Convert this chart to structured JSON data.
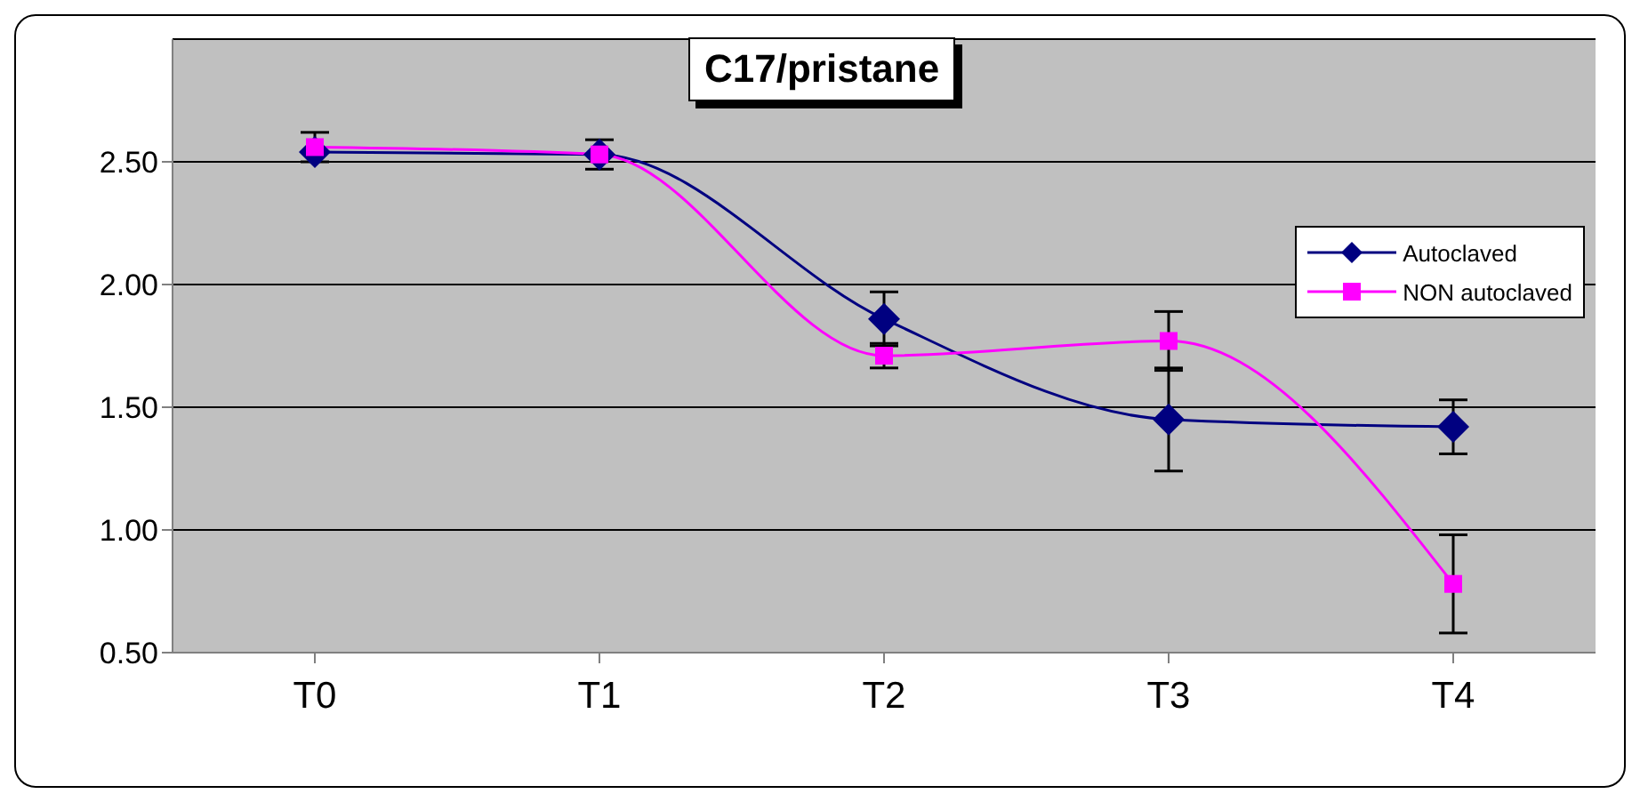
{
  "chart_data": {
    "type": "line",
    "title": "C17/pristane",
    "categories": [
      "T0",
      "T1",
      "T2",
      "T3",
      "T4"
    ],
    "series": [
      {
        "name": "Autoclaved",
        "color": "#000080",
        "marker": "diamond",
        "values": [
          2.54,
          2.53,
          1.86,
          1.45,
          1.42
        ],
        "errors": [
          null,
          null,
          0.11,
          0.21,
          0.11
        ]
      },
      {
        "name": "NON autoclaved",
        "color": "#ff00ff",
        "marker": "square",
        "values": [
          2.56,
          2.53,
          1.71,
          1.77,
          0.78
        ],
        "errors": [
          0.06,
          0.06,
          0.05,
          0.12,
          0.2
        ]
      }
    ],
    "ylim": [
      0.5,
      3.0
    ],
    "yticks": [
      {
        "value": 0.5,
        "label": "0.50"
      },
      {
        "value": 1.0,
        "label": "1.00"
      },
      {
        "value": 1.5,
        "label": "1.50"
      },
      {
        "value": 2.0,
        "label": "2.00"
      },
      {
        "value": 2.5,
        "label": "2.50"
      }
    ],
    "grid": "y",
    "legend": "right"
  }
}
